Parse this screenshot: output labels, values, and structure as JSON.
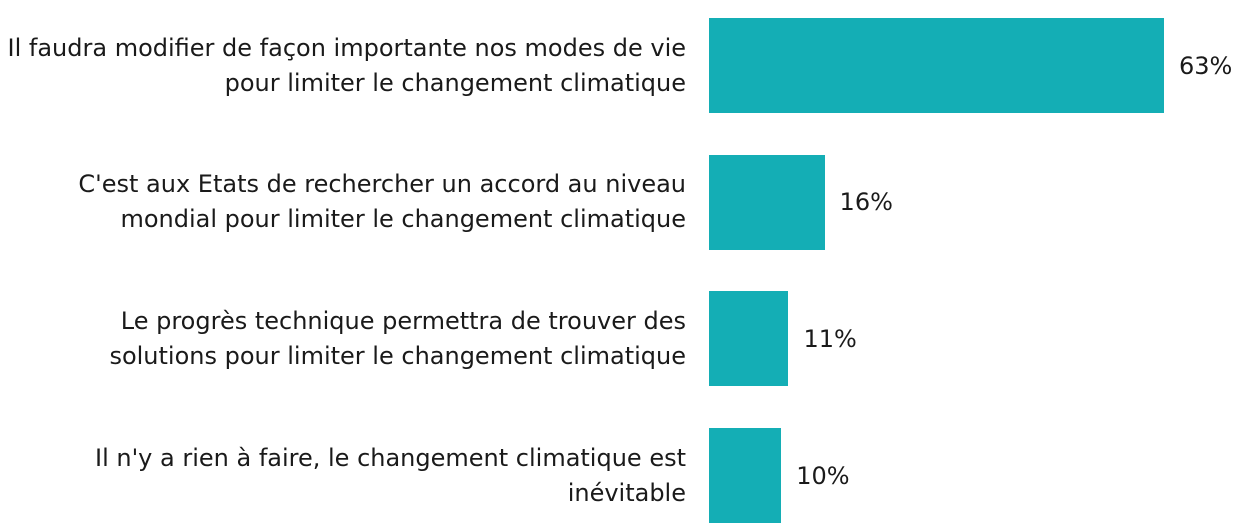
{
  "chart_data": {
    "type": "hbar",
    "categories": [
      "Il faudra modifier de façon importante nos modes de vie pour limiter le changement climatique",
      "C'est aux Etats de rechercher un accord au niveau mondial pour limiter le changement climatique",
      "Le progrès technique permettra de trouver des solutions pour limiter le changement climatique",
      "Il n'y a rien à faire, le changement climatique est inévitable"
    ],
    "values": [
      63,
      16,
      11,
      10
    ],
    "value_labels": [
      "63%",
      "16%",
      "11%",
      "10%"
    ],
    "color": "#14aeb5"
  }
}
